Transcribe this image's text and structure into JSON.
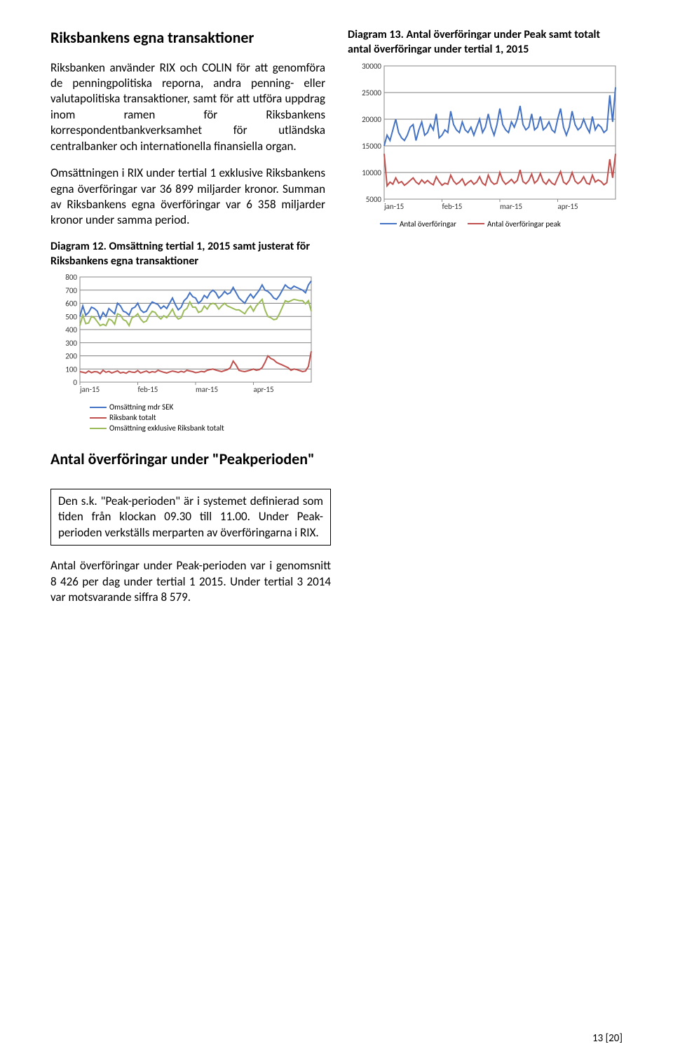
{
  "section1": {
    "title": "Riksbankens egna transaktioner",
    "para1": "Riksbanken använder RIX och COLIN för att genomföra de penningpolitiska reporna, andra penning- eller valutapolitiska transaktioner, samt för att utföra uppdrag inom ramen för Riksbankens korrespondentbankverksamhet för utländska centralbanker och internationella finansiella organ.",
    "para2": "Omsättningen i RIX under tertial 1 exklusive Riksbankens egna överföringar var 36 899 miljarder kronor. Summan av Riksbankens egna överföringar var 6 358 miljarder kronor under samma period."
  },
  "chart12": {
    "title": "Diagram 12. Omsättning tertial 1, 2015 samt justerat för Riksbankens egna transaktioner",
    "ylim": [
      0,
      800
    ],
    "ytick_step": 100,
    "x_labels": [
      "jan-15",
      "feb-15",
      "mar-15",
      "apr-15"
    ],
    "grid_color": "#808080",
    "series": [
      {
        "name": "Omsättning mdr SEK",
        "color": "#4472c4",
        "data": [
          500,
          580,
          510,
          530,
          570,
          560,
          540,
          480,
          530,
          500,
          560,
          540,
          520,
          600,
          580,
          540,
          530,
          510,
          560,
          570,
          600,
          550,
          530,
          540,
          580,
          610,
          600,
          590,
          560,
          580,
          560,
          600,
          640,
          590,
          550,
          570,
          620,
          640,
          680,
          650,
          640,
          600,
          620,
          660,
          640,
          680,
          700,
          680,
          640,
          660,
          690,
          670,
          680,
          720,
          680,
          640,
          620,
          600,
          640,
          670,
          640,
          670,
          700,
          740,
          700,
          690,
          670,
          640,
          630,
          660,
          700,
          740,
          720,
          710,
          730,
          720,
          710,
          700,
          680,
          740,
          770
        ]
      },
      {
        "name": "Riksbank totalt",
        "color": "#c0504d",
        "data": [
          80,
          75,
          70,
          85,
          72,
          80,
          78,
          65,
          90,
          75,
          82,
          70,
          78,
          86,
          70,
          75,
          68,
          82,
          76,
          74,
          88,
          70,
          78,
          85,
          72,
          80,
          76,
          90,
          82,
          75,
          70,
          78,
          85,
          80,
          74,
          82,
          76,
          90,
          85,
          80,
          72,
          76,
          82,
          78,
          90,
          95,
          100,
          92,
          86,
          80,
          88,
          95,
          110,
          160,
          130,
          90,
          84,
          80,
          86,
          92,
          100,
          90,
          95,
          110,
          150,
          200,
          180,
          170,
          150,
          140,
          130,
          120,
          110,
          90,
          100,
          95,
          88,
          80,
          85,
          120,
          235
        ]
      },
      {
        "name": "Omsättning exklusive Riksbank totalt",
        "color": "#9bbb59",
        "data": [
          430,
          510,
          445,
          450,
          500,
          490,
          460,
          430,
          440,
          430,
          480,
          470,
          440,
          520,
          510,
          475,
          465,
          430,
          490,
          500,
          520,
          480,
          455,
          465,
          510,
          540,
          530,
          500,
          480,
          505,
          490,
          520,
          555,
          505,
          480,
          490,
          545,
          560,
          610,
          570,
          570,
          530,
          540,
          580,
          555,
          590,
          600,
          590,
          555,
          580,
          600,
          580,
          570,
          560,
          550,
          550,
          535,
          520,
          555,
          580,
          540,
          580,
          605,
          630,
          550,
          500,
          490,
          475,
          480,
          520,
          570,
          620,
          610,
          620,
          630,
          625,
          620,
          620,
          595,
          620,
          540
        ]
      }
    ],
    "legend": [
      "Omsättning mdr SEK",
      "Riksbank totalt",
      "Omsättning exklusive Riksbank totalt"
    ]
  },
  "chart13": {
    "title": "Diagram 13. Antal överföringar under Peak samt totalt antal överföringar under tertial 1, 2015",
    "ylim": [
      5000,
      30000
    ],
    "ytick_step": 5000,
    "x_labels": [
      "jan-15",
      "feb-15",
      "mar-15",
      "apr-15"
    ],
    "grid_color": "#808080",
    "series": [
      {
        "name": "Antal överföringar",
        "color": "#4472c4",
        "data": [
          15000,
          17000,
          16000,
          18000,
          20000,
          17500,
          16500,
          16000,
          17000,
          18500,
          19000,
          16000,
          18000,
          19500,
          17000,
          17500,
          19000,
          18000,
          21000,
          16500,
          17000,
          18000,
          17500,
          21500,
          19000,
          18000,
          17500,
          19500,
          18000,
          17500,
          18500,
          17000,
          18500,
          20000,
          17500,
          18500,
          21000,
          18500,
          17000,
          19000,
          22000,
          19000,
          18000,
          17500,
          19500,
          18500,
          20000,
          22500,
          19000,
          18000,
          18500,
          21000,
          18000,
          18500,
          20500,
          18000,
          18500,
          19500,
          18000,
          17500,
          20000,
          22000,
          18500,
          17000,
          18500,
          21500,
          19000,
          18000,
          18500,
          20000,
          18500,
          17500,
          20500,
          18000,
          19000,
          18500,
          17500,
          18000,
          24500,
          19500,
          26000
        ]
      },
      {
        "name": "Antal överföringar peak",
        "color": "#c0504d",
        "data": [
          13500,
          7500,
          8200,
          7800,
          9000,
          8000,
          8300,
          7600,
          8000,
          8500,
          9000,
          8200,
          7800,
          8600,
          8000,
          8500,
          8000,
          7700,
          9200,
          8300,
          7600,
          8000,
          7800,
          9500,
          8400,
          7800,
          8200,
          8800,
          7600,
          8100,
          8500,
          7800,
          8200,
          9200,
          8000,
          7600,
          9500,
          8300,
          7800,
          8000,
          10000,
          8500,
          7800,
          8200,
          8700,
          8000,
          8500,
          10500,
          8300,
          7900,
          8500,
          9700,
          8000,
          8500,
          9800,
          8300,
          7800,
          8700,
          8000,
          7700,
          9000,
          10200,
          8200,
          7800,
          8500,
          10000,
          8400,
          7900,
          8300,
          9200,
          8000,
          7800,
          9500,
          8200,
          8600,
          8300,
          7700,
          8100,
          12500,
          9000,
          13500
        ]
      }
    ],
    "legend": [
      "Antal överföringar",
      "Antal överföringar peak"
    ]
  },
  "section2": {
    "title": "Antal överföringar under \"Peakperioden\"",
    "box": "Den s.k. \"Peak-perioden\" är i systemet definierad som tiden från klockan 09.30 till 11.00. Under Peak-perioden verkställs merparten av överföringarna i RIX.",
    "para": "Antal överföringar under Peak-perioden var i genomsnitt 8 426 per dag under tertial 1 2015. Under tertial 3 2014 var motsvarande siffra 8 579."
  },
  "pageNum": "13 [20]"
}
